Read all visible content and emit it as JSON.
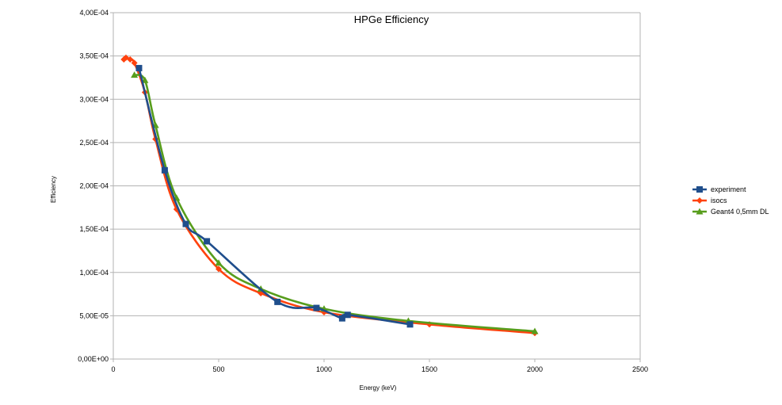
{
  "chart_data": {
    "type": "scatter",
    "title": "HPGe Efficiency",
    "xlabel": "Energy (keV)",
    "ylabel": "Efficiency",
    "xlim": [
      0,
      2500
    ],
    "ylim": [
      0,
      0.0004
    ],
    "x_ticks": [
      "0",
      "500",
      "1000",
      "1500",
      "2000",
      "2500"
    ],
    "x_tick_values": [
      0,
      500,
      1000,
      1500,
      2000,
      2500
    ],
    "y_ticks": [
      "0,00E+00",
      "5,00E-05",
      "1,00E-04",
      "1,50E-04",
      "2,00E-04",
      "2,50E-04",
      "3,00E-04",
      "3,50E-04",
      "4,00E-04"
    ],
    "y_tick_values": [
      0,
      5e-05,
      0.0001,
      0.00015,
      0.0002,
      0.00025,
      0.0003,
      0.00035,
      0.0004
    ],
    "grid": "horizontal",
    "legend_position": "right",
    "series": [
      {
        "name": "experiment",
        "color": "#1f4e8c",
        "marker": "square",
        "x": [
          122,
          244,
          344,
          444,
          779,
          964,
          1086,
          1112,
          1408
        ],
        "y": [
          0.000336,
          0.000218,
          0.000156,
          0.000136,
          6.6e-05,
          5.9e-05,
          4.7e-05,
          5.1e-05,
          4e-05
        ]
      },
      {
        "name": "isocs",
        "color": "#ff420e",
        "marker": "diamond",
        "x": [
          50,
          60,
          80,
          100,
          150,
          200,
          300,
          500,
          700,
          1000,
          1500,
          2000
        ],
        "y": [
          0.000346,
          0.000348,
          0.000346,
          0.000342,
          0.000308,
          0.000254,
          0.000173,
          0.000104,
          7.6e-05,
          5.4e-05,
          4e-05,
          3e-05
        ]
      },
      {
        "name": "Geant4 0,5mm DL",
        "color": "#579d1c",
        "marker": "triangle",
        "x": [
          100,
          150,
          200,
          300,
          500,
          700,
          1000,
          1400,
          2000
        ],
        "y": [
          0.000328,
          0.000322,
          0.00027,
          0.000186,
          0.000111,
          8.1e-05,
          5.8e-05,
          4.4e-05,
          3.2e-05
        ]
      }
    ]
  }
}
